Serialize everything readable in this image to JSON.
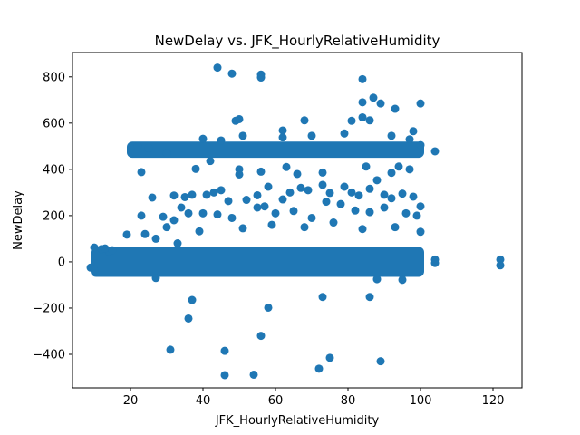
{
  "chart_data": {
    "type": "scatter",
    "title": "NewDelay vs. JFK_HourlyRelativeHumidity",
    "xlabel": "JFK_HourlyRelativeHumidity",
    "ylabel": "NewDelay",
    "xlim": [
      4,
      128
    ],
    "ylim": [
      -545,
      905
    ],
    "xticks": [
      20,
      40,
      60,
      80,
      100,
      120
    ],
    "xtick_labels": [
      "20",
      "40",
      "60",
      "80",
      "100",
      "120"
    ],
    "yticks": [
      -400,
      -200,
      0,
      200,
      400,
      600,
      800
    ],
    "ytick_labels": [
      "−400",
      "−200",
      "0",
      "200",
      "400",
      "600",
      "800"
    ],
    "grid": false,
    "color": "#1f77b4",
    "bands": [
      {
        "name": "main-band",
        "x_range": [
          9,
          101
        ],
        "y_range": [
          -65,
          65
        ]
      },
      {
        "name": "upper-band",
        "x_range": [
          19,
          101
        ],
        "y_range": [
          450,
          520
        ]
      }
    ],
    "points": [
      [
        44,
        840
      ],
      [
        48,
        814
      ],
      [
        56,
        810
      ],
      [
        56,
        797
      ],
      [
        84,
        790
      ],
      [
        87,
        710
      ],
      [
        84,
        690
      ],
      [
        89,
        685
      ],
      [
        93,
        662
      ],
      [
        100,
        685
      ],
      [
        49,
        610
      ],
      [
        50,
        617
      ],
      [
        62,
        568
      ],
      [
        68,
        612
      ],
      [
        84,
        625
      ],
      [
        81,
        610
      ],
      [
        86,
        612
      ],
      [
        98,
        565
      ],
      [
        22,
        500
      ],
      [
        25,
        492
      ],
      [
        30,
        470
      ],
      [
        40,
        532
      ],
      [
        45,
        525
      ],
      [
        51,
        545
      ],
      [
        62,
        538
      ],
      [
        70,
        545
      ],
      [
        79,
        555
      ],
      [
        92,
        545
      ],
      [
        97,
        530
      ],
      [
        100,
        505
      ],
      [
        104,
        478
      ],
      [
        23,
        388
      ],
      [
        38,
        402
      ],
      [
        42,
        436
      ],
      [
        50,
        400
      ],
      [
        50,
        378
      ],
      [
        56,
        390
      ],
      [
        63,
        410
      ],
      [
        66,
        380
      ],
      [
        73,
        386
      ],
      [
        85,
        412
      ],
      [
        92,
        385
      ],
      [
        97,
        400
      ],
      [
        94,
        412
      ],
      [
        26,
        278
      ],
      [
        32,
        287
      ],
      [
        35,
        280
      ],
      [
        37,
        290
      ],
      [
        41,
        290
      ],
      [
        43,
        300
      ],
      [
        45,
        310
      ],
      [
        47,
        263
      ],
      [
        52,
        268
      ],
      [
        55,
        288
      ],
      [
        57,
        240
      ],
      [
        58,
        325
      ],
      [
        62,
        270
      ],
      [
        64,
        300
      ],
      [
        67,
        320
      ],
      [
        69,
        310
      ],
      [
        73,
        333
      ],
      [
        75,
        298
      ],
      [
        79,
        325
      ],
      [
        81,
        300
      ],
      [
        83,
        287
      ],
      [
        86,
        316
      ],
      [
        88,
        353
      ],
      [
        90,
        290
      ],
      [
        92,
        275
      ],
      [
        95,
        295
      ],
      [
        98,
        282
      ],
      [
        100,
        240
      ],
      [
        23,
        200
      ],
      [
        24,
        120
      ],
      [
        29,
        195
      ],
      [
        30,
        150
      ],
      [
        32,
        180
      ],
      [
        34,
        235
      ],
      [
        36,
        210
      ],
      [
        40,
        210
      ],
      [
        44,
        205
      ],
      [
        48,
        190
      ],
      [
        55,
        235
      ],
      [
        60,
        210
      ],
      [
        65,
        220
      ],
      [
        70,
        190
      ],
      [
        74,
        260
      ],
      [
        78,
        250
      ],
      [
        82,
        222
      ],
      [
        86,
        215
      ],
      [
        90,
        235
      ],
      [
        96,
        210
      ],
      [
        99,
        200
      ],
      [
        19,
        118
      ],
      [
        27,
        100
      ],
      [
        33,
        80
      ],
      [
        39,
        132
      ],
      [
        51,
        145
      ],
      [
        59,
        160
      ],
      [
        68,
        150
      ],
      [
        76,
        170
      ],
      [
        84,
        142
      ],
      [
        93,
        150
      ],
      [
        100,
        130
      ],
      [
        10,
        62
      ],
      [
        14,
        45
      ],
      [
        9,
        -25
      ],
      [
        10,
        -35
      ],
      [
        12,
        55
      ],
      [
        13,
        58
      ],
      [
        15,
        50
      ],
      [
        104,
        10
      ],
      [
        104,
        -5
      ],
      [
        122,
        10
      ],
      [
        122,
        -15
      ],
      [
        27,
        -70
      ],
      [
        37,
        -165
      ],
      [
        36,
        -245
      ],
      [
        31,
        -380
      ],
      [
        46,
        -385
      ],
      [
        46,
        -490
      ],
      [
        54,
        -488
      ],
      [
        56,
        -320
      ],
      [
        58,
        -198
      ],
      [
        72,
        -462
      ],
      [
        73,
        -152
      ],
      [
        75,
        -415
      ],
      [
        86,
        -152
      ],
      [
        89,
        -430
      ],
      [
        95,
        -78
      ],
      [
        88,
        -75
      ]
    ]
  }
}
